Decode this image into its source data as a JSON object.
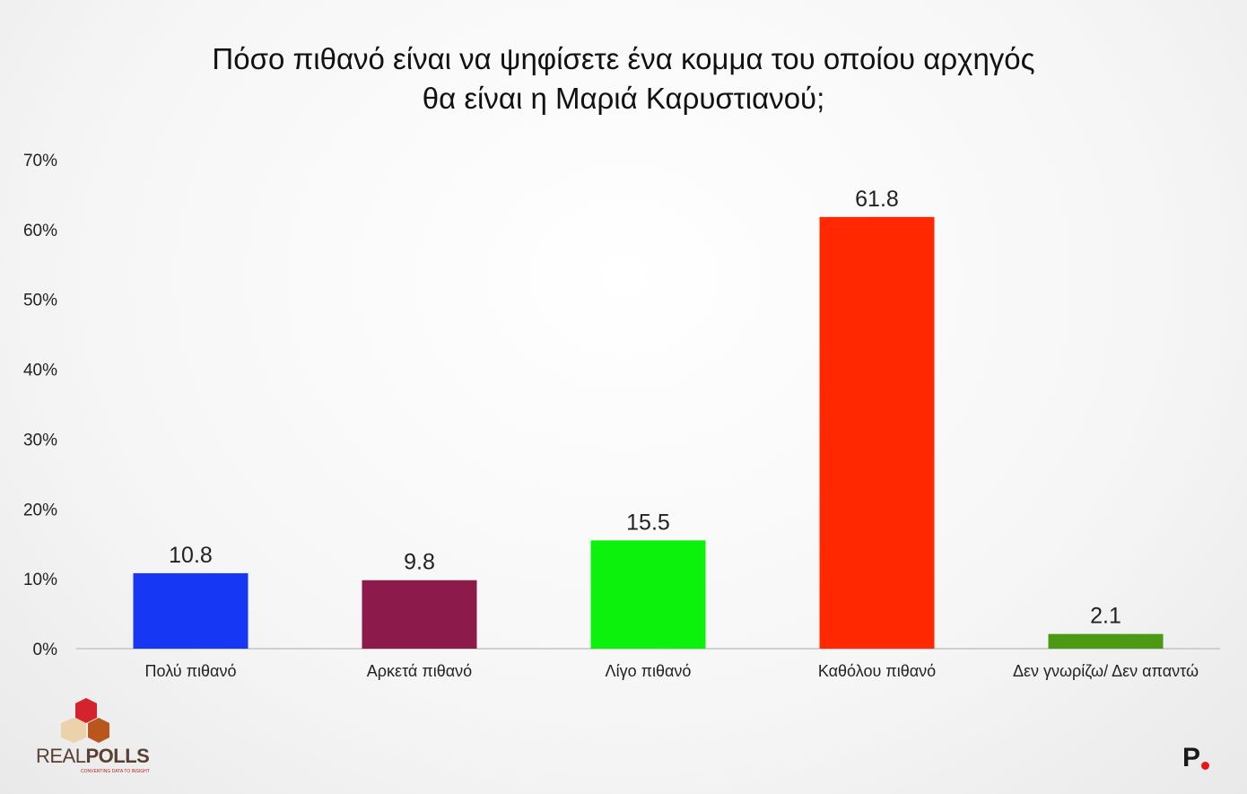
{
  "chart_data": {
    "type": "bar",
    "title_lines": [
      "Πόσο πιθανό είναι να ψηφίσετε ένα κομμα του οποίου αρχηγός",
      "θα είναι η Μαριά Καρυστιανού;"
    ],
    "categories": [
      "Πολύ πιθανό",
      "Αρκετά πιθανό",
      "Λίγο πιθανό",
      "Καθόλου πιθανό",
      "Δεν γνωρίζω/ Δεν απαντώ"
    ],
    "values": [
      10.8,
      9.8,
      15.5,
      61.8,
      2.1
    ],
    "value_labels": [
      "10.8",
      "9.8",
      "15.5",
      "61.8",
      "2.1"
    ],
    "colors": [
      "#1638f5",
      "#8c1a4b",
      "#0cf20c",
      "#ff2800",
      "#4a9a14"
    ],
    "ylim": [
      0,
      70
    ],
    "yticks": [
      0,
      10,
      20,
      30,
      40,
      50,
      60,
      70
    ],
    "ytick_labels": [
      "0%",
      "10%",
      "20%",
      "30%",
      "40%",
      "50%",
      "60%",
      "70%"
    ],
    "grid": false,
    "legend": "none"
  },
  "branding": {
    "logo_left": "REALPOLLS",
    "logo_left_part1": "REAL",
    "logo_left_part2": "POLLS",
    "logo_left_tagline": "CONVERTING DATA TO INSIGHT",
    "logo_right": "P."
  }
}
